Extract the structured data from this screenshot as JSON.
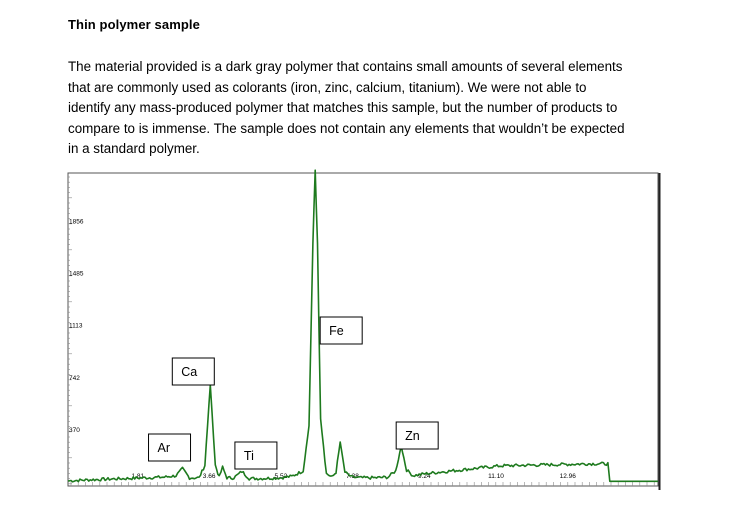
{
  "document": {
    "heading": "Thin polymer sample",
    "paragraph_lines": [
      "The material provided is a dark gray polymer that contains small amounts of several elements",
      "that are commonly used as colorants (iron, zinc, calcium, titanium).  We were not able to",
      "identify any mass-produced polymer that matches this sample, but the number of products to",
      "compare to is immense.  The sample does not contain any elements that wouldn’t be expected",
      "in a standard polymer."
    ]
  },
  "chart_data": {
    "type": "line",
    "title": "",
    "xlabel": "",
    "ylabel": "",
    "x_ticks": [
      "1.81",
      "3.66",
      "5.52",
      "7.38",
      "9.24",
      "11.10",
      "12.96"
    ],
    "y_ticks": [
      "370",
      "742",
      "1113",
      "1485",
      "1856"
    ],
    "xlim": [
      0.0,
      15.3
    ],
    "ylim": [
      0,
      2200
    ],
    "grid": false,
    "legend": "none",
    "line_color": "#1e7a1e",
    "peaks": [
      {
        "label": "Ar",
        "x": 2.97,
        "y": 95
      },
      {
        "label": "Ca",
        "x": 3.69,
        "y": 690
      },
      {
        "label": "",
        "x": 4.01,
        "y": 105
      },
      {
        "label": "Ti",
        "x": 4.51,
        "y": 75
      },
      {
        "label": "Fe",
        "x": 6.41,
        "y": 2220
      },
      {
        "label": "",
        "x": 7.06,
        "y": 285
      },
      {
        "label": "Zn",
        "x": 8.64,
        "y": 255
      }
    ],
    "series": [
      {
        "x": [
          0.0,
          0.5,
          1.0,
          1.5,
          2.0,
          2.5,
          2.8,
          2.97,
          3.15,
          3.4,
          3.55,
          3.69,
          3.82,
          3.92,
          4.01,
          4.12,
          4.3,
          4.51,
          4.7,
          5.0,
          5.5,
          5.8,
          6.1,
          6.25,
          6.35,
          6.41,
          6.47,
          6.55,
          6.7,
          6.85,
          6.95,
          7.06,
          7.18,
          7.35,
          7.6,
          8.0,
          8.3,
          8.5,
          8.64,
          8.78,
          8.95,
          9.3,
          9.8,
          10.5,
          11.2,
          12.0,
          12.8,
          13.5,
          14.0,
          14.05,
          15.3
        ],
        "y": [
          8,
          15,
          20,
          25,
          30,
          35,
          45,
          95,
          30,
          30,
          120,
          690,
          120,
          35,
          105,
          30,
          30,
          75,
          25,
          25,
          30,
          40,
          80,
          400,
          1700,
          2220,
          1700,
          450,
          60,
          35,
          70,
          285,
          70,
          35,
          30,
          30,
          35,
          80,
          255,
          85,
          45,
          60,
          75,
          95,
          115,
          120,
          125,
          130,
          130,
          5,
          5
        ]
      }
    ]
  }
}
